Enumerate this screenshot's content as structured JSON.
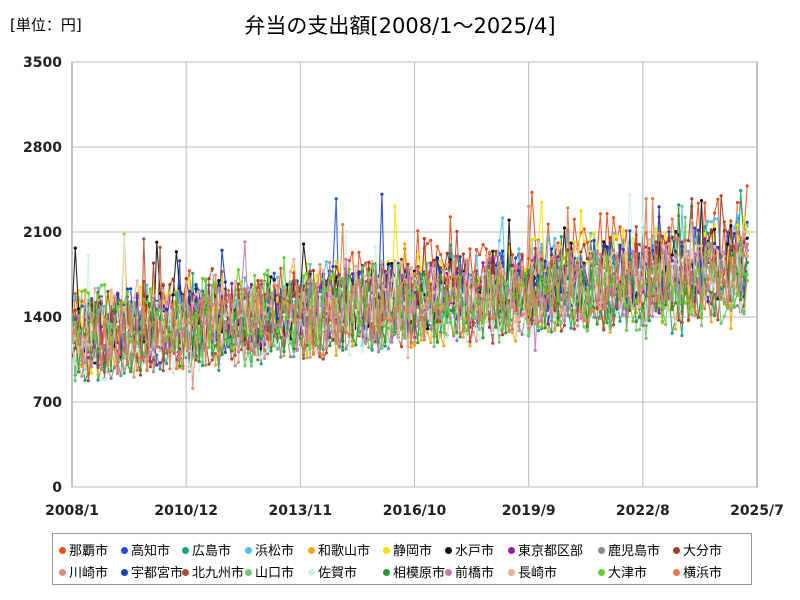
{
  "unit_label": "[単位：円]",
  "chart_data": {
    "type": "line",
    "title": "弁当の支出額[2008/1～2025/4]",
    "xlabel": "",
    "ylabel": "",
    "ylim": [
      0,
      3500
    ],
    "yticks": [
      "0",
      "700",
      "1400",
      "2100",
      "2800",
      "3500"
    ],
    "xticks": [
      "2008/1",
      "2010/12",
      "2013/11",
      "2016/10",
      "2019/9",
      "2022/8",
      "2025/7"
    ],
    "x_range": [
      "2008/1",
      "2025/7"
    ],
    "grid": true,
    "legend_position": "bottom",
    "series": [
      {
        "name": "那覇市",
        "color": "#e8501c",
        "last": 2480
      },
      {
        "name": "高知市",
        "color": "#1f4fd6",
        "last": 2180
      },
      {
        "name": "広島市",
        "color": "#13a37a",
        "last": 1900
      },
      {
        "name": "浜松市",
        "color": "#4fc1e6",
        "last": 2150
      },
      {
        "name": "和歌山市",
        "color": "#f2a814",
        "last": 1700
      },
      {
        "name": "静岡市",
        "color": "#f7e200",
        "last": 2100
      },
      {
        "name": "水戸市",
        "color": "#111111",
        "last": 2050
      },
      {
        "name": "東京都区部",
        "color": "#9b1aa3",
        "last": 1900
      },
      {
        "name": "鹿児島市",
        "color": "#7f8c96",
        "last": 1850
      },
      {
        "name": "大分市",
        "color": "#a33c22",
        "last": 1950
      },
      {
        "name": "川崎市",
        "color": "#d9937a",
        "last": 1900
      },
      {
        "name": "宇都宮市",
        "color": "#1a3db8",
        "last": 2000
      },
      {
        "name": "北九州市",
        "color": "#b04a2f",
        "last": 1800
      },
      {
        "name": "山口市",
        "color": "#6cc86c",
        "last": 1750
      },
      {
        "name": "佐賀市",
        "color": "#cfeee6",
        "last": 1800
      },
      {
        "name": "相模原市",
        "color": "#2a9a2a",
        "last": 1850
      },
      {
        "name": "前橋市",
        "color": "#c77bb3",
        "last": 1950
      },
      {
        "name": "長崎市",
        "color": "#e8b49c",
        "last": 1900
      },
      {
        "name": "大津市",
        "color": "#66cc33",
        "last": 1700
      },
      {
        "name": "横浜市",
        "color": "#e07b4a",
        "last": 2000
      }
    ]
  }
}
